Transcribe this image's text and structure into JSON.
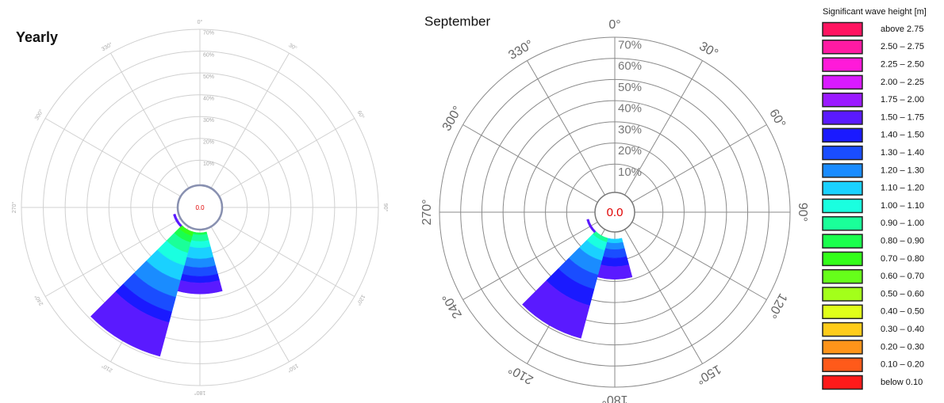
{
  "chart_data": [
    {
      "type": "wave-rose",
      "title": "Yearly",
      "calm_label": "0.0",
      "categories": [
        "0°",
        "30°",
        "60°",
        "90°",
        "120°",
        "150°",
        "180°",
        "210°",
        "240°",
        "270°",
        "300°",
        "330°"
      ],
      "rlim": [
        0,
        70
      ],
      "rticks": [
        {
          "value": 10,
          "label": "10%"
        },
        {
          "value": 20,
          "label": "20%"
        },
        {
          "value": 30,
          "label": "30%"
        },
        {
          "value": 40,
          "label": "40%"
        },
        {
          "value": 50,
          "label": "50%"
        },
        {
          "value": 60,
          "label": "60%"
        },
        {
          "value": 70,
          "label": "70%"
        }
      ],
      "series": [
        {
          "color": "#33ff1a",
          "values": [
            0,
            0,
            0,
            0,
            0,
            0,
            0,
            2,
            0,
            0,
            0,
            0
          ]
        },
        {
          "color": "#1aff4d",
          "values": [
            0,
            0,
            0,
            0,
            0,
            0,
            1,
            3,
            0,
            0,
            0,
            0
          ]
        },
        {
          "color": "#1aff99",
          "values": [
            0,
            0,
            0,
            0,
            0,
            0,
            3,
            5,
            0,
            0,
            0,
            0
          ]
        },
        {
          "color": "#1affe0",
          "values": [
            0,
            0,
            0,
            0,
            0,
            0,
            3,
            6,
            0,
            0,
            0,
            0
          ]
        },
        {
          "color": "#1ad1ff",
          "values": [
            0,
            0,
            0,
            0,
            0,
            0,
            5,
            7,
            0,
            0,
            0,
            0
          ]
        },
        {
          "color": "#1a8cff",
          "values": [
            0,
            0,
            0,
            0,
            0,
            0,
            4,
            8,
            0,
            0,
            0,
            0
          ]
        },
        {
          "color": "#1a4dff",
          "values": [
            0,
            0,
            0,
            0,
            0,
            0,
            4,
            7,
            0,
            0,
            0,
            0
          ]
        },
        {
          "color": "#1a1aff",
          "values": [
            0,
            0,
            0,
            0,
            0,
            0,
            3,
            5,
            0,
            0,
            0,
            0
          ]
        },
        {
          "color": "#5a1aff",
          "values": [
            0,
            0,
            0,
            0,
            0,
            0,
            5,
            16,
            1,
            0,
            0,
            0
          ]
        }
      ]
    },
    {
      "type": "wave-rose",
      "title": "September",
      "calm_label": "0.0",
      "categories": [
        "0°",
        "30°",
        "60°",
        "90°",
        "120°",
        "150°",
        "180°",
        "210°",
        "240°",
        "270°",
        "300°",
        "330°"
      ],
      "rlim": [
        0,
        70
      ],
      "rticks": [
        {
          "value": 10,
          "label": "10%"
        },
        {
          "value": 20,
          "label": "20%"
        },
        {
          "value": 30,
          "label": "30%"
        },
        {
          "value": 40,
          "label": "40%"
        },
        {
          "value": 50,
          "label": "50%"
        },
        {
          "value": 60,
          "label": "60%"
        },
        {
          "value": 70,
          "label": "70%"
        }
      ],
      "series": [
        {
          "color": "#1aff99",
          "values": [
            0,
            0,
            0,
            0,
            0,
            0,
            0,
            2,
            0,
            0,
            0,
            0
          ]
        },
        {
          "color": "#1affe0",
          "values": [
            0,
            0,
            0,
            0,
            0,
            0,
            0,
            4,
            0,
            0,
            0,
            0
          ]
        },
        {
          "color": "#1ad1ff",
          "values": [
            0,
            0,
            0,
            0,
            0,
            0,
            2,
            5,
            0,
            0,
            0,
            0
          ]
        },
        {
          "color": "#1a8cff",
          "values": [
            0,
            0,
            0,
            0,
            0,
            0,
            3,
            7,
            0,
            0,
            0,
            0
          ]
        },
        {
          "color": "#1a4dff",
          "values": [
            0,
            0,
            0,
            0,
            0,
            0,
            4,
            7,
            0,
            0,
            0,
            0
          ]
        },
        {
          "color": "#1a1aff",
          "values": [
            0,
            0,
            0,
            0,
            0,
            0,
            4,
            8,
            0,
            0,
            0,
            0
          ]
        },
        {
          "color": "#5a1aff",
          "values": [
            0,
            0,
            0,
            0,
            0,
            0,
            6,
            16,
            1,
            0,
            0,
            0
          ]
        }
      ]
    }
  ],
  "legend": {
    "title": "Significant wave height [m]",
    "items": [
      {
        "label": "above 2.75",
        "color": "#ff1460"
      },
      {
        "label": "2.50 – 2.75",
        "color": "#ff1aa3"
      },
      {
        "label": "2.25 – 2.50",
        "color": "#ff1ad9"
      },
      {
        "label": "2.00 – 2.25",
        "color": "#d91aff"
      },
      {
        "label": "1.75 – 2.00",
        "color": "#9b1aff"
      },
      {
        "label": "1.50 – 1.75",
        "color": "#5a1aff"
      },
      {
        "label": "1.40 – 1.50",
        "color": "#1a1aff"
      },
      {
        "label": "1.30 – 1.40",
        "color": "#1a4dff"
      },
      {
        "label": "1.20 – 1.30",
        "color": "#1a8cff"
      },
      {
        "label": "1.10 – 1.20",
        "color": "#1ad1ff"
      },
      {
        "label": "1.00 – 1.10",
        "color": "#1affe0"
      },
      {
        "label": "0.90 – 1.00",
        "color": "#1aff99"
      },
      {
        "label": "0.80 – 0.90",
        "color": "#1aff4d"
      },
      {
        "label": "0.70 – 0.80",
        "color": "#33ff1a"
      },
      {
        "label": "0.60 – 0.70",
        "color": "#66ff1a"
      },
      {
        "label": "0.50 – 0.60",
        "color": "#a3ff1a"
      },
      {
        "label": "0.40 – 0.50",
        "color": "#e0ff1a"
      },
      {
        "label": "0.30 – 0.40",
        "color": "#ffcc1a"
      },
      {
        "label": "0.20 – 0.30",
        "color": "#ff941a"
      },
      {
        "label": "0.10 – 0.20",
        "color": "#ff5a1a"
      },
      {
        "label": "below 0.10",
        "color": "#ff1a1a"
      }
    ]
  }
}
